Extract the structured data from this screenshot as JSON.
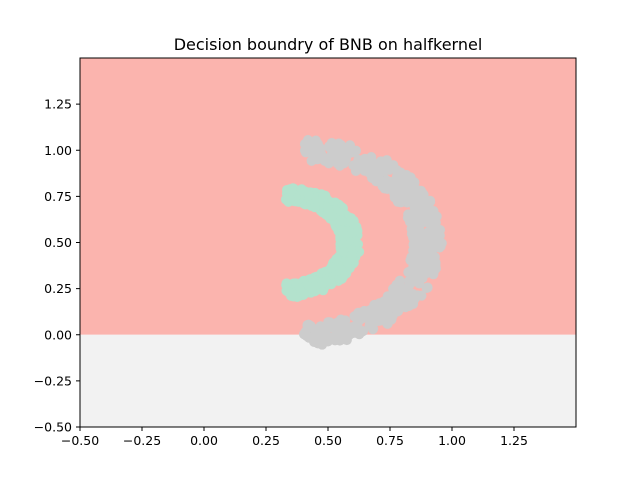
{
  "chart_data": {
    "type": "scatter",
    "title": "Decision boundry of BNB on halfkernel",
    "xlabel": "",
    "ylabel": "",
    "xlim": [
      -0.5,
      1.5
    ],
    "ylim": [
      -0.5,
      1.5
    ],
    "x_ticks": [
      -0.5,
      -0.25,
      0.0,
      0.25,
      0.5,
      0.75,
      1.0,
      1.25
    ],
    "x_tick_labels": [
      "−0.50",
      "−0.25",
      "0.00",
      "0.25",
      "0.50",
      "0.75",
      "1.00",
      "1.25"
    ],
    "y_ticks": [
      -0.5,
      -0.25,
      0.0,
      0.25,
      0.5,
      0.75,
      1.0,
      1.25
    ],
    "y_tick_labels": [
      "−0.50",
      "−0.25",
      "0.00",
      "0.25",
      "0.50",
      "0.75",
      "1.00",
      "1.25"
    ],
    "grid": false,
    "decision_regions": [
      {
        "y_range": [
          0.0,
          1.5
        ],
        "color": "#fbb4ae"
      },
      {
        "y_range": [
          -0.5,
          0.0
        ],
        "color": "#f2f2f2"
      }
    ],
    "classes": [
      {
        "color": "#cccccc",
        "shape": "outer half-ring",
        "center": [
          0.4,
          0.5
        ],
        "radius_x": [
          0.44,
          0.56
        ],
        "radius_y": [
          0.44,
          0.56
        ]
      },
      {
        "color": "#b3e2cd",
        "shape": "inner half-ring",
        "center": [
          0.33,
          0.5
        ],
        "radius_x": [
          0.22,
          0.3
        ],
        "radius_y": [
          0.22,
          0.3
        ]
      }
    ]
  }
}
